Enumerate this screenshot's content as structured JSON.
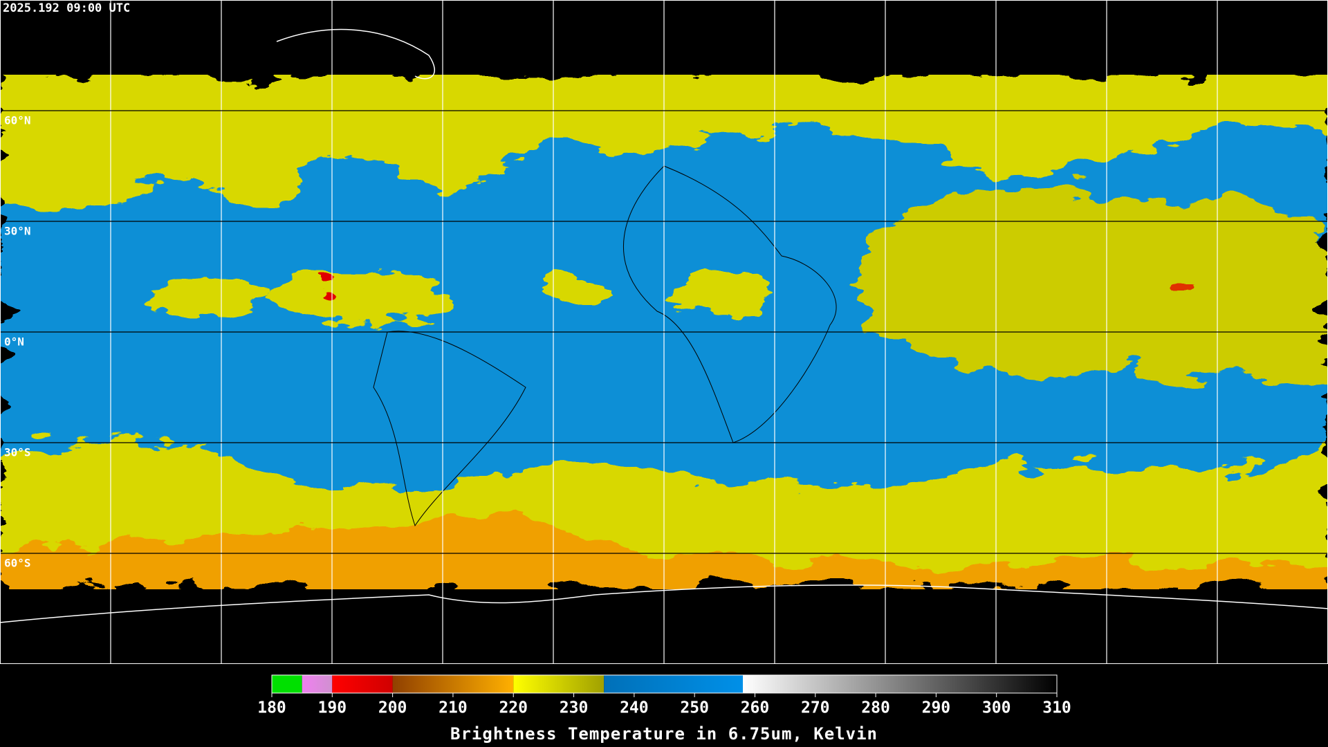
{
  "map": {
    "timestamp": "2025.192 09:00 UTC",
    "lat_lines": [
      {
        "value": 60,
        "label": "60°N"
      },
      {
        "value": 30,
        "label": "30°N"
      },
      {
        "value": 0,
        "label": "0°N"
      },
      {
        "value": -30,
        "label": "30°S"
      },
      {
        "value": -60,
        "label": "60°S"
      }
    ],
    "lon_lines": [
      -150,
      -120,
      -90,
      -60,
      -30,
      0,
      30,
      60,
      90,
      120,
      150
    ],
    "lon_range": [
      -180,
      180
    ],
    "lat_range": [
      -90,
      90
    ]
  },
  "colorbar": {
    "title": "Brightness Temperature in 6.75um, Kelvin",
    "range": [
      180,
      310
    ],
    "ticks": [
      180,
      190,
      200,
      210,
      220,
      230,
      240,
      250,
      260,
      270,
      280,
      290,
      300,
      310
    ],
    "segments": [
      {
        "from": 180,
        "to": 185,
        "colors": [
          "#00e000",
          "#00e000"
        ]
      },
      {
        "from": 185,
        "to": 190,
        "colors": [
          "#f080f0",
          "#d090d0"
        ]
      },
      {
        "from": 190,
        "to": 200,
        "colors": [
          "#ff0000",
          "#d00000"
        ]
      },
      {
        "from": 200,
        "to": 220,
        "colors": [
          "#904000",
          "#ffb000"
        ]
      },
      {
        "from": 220,
        "to": 235,
        "colors": [
          "#ffff00",
          "#a0a000"
        ]
      },
      {
        "from": 235,
        "to": 258,
        "colors": [
          "#0070b8",
          "#0090e8"
        ]
      },
      {
        "from": 258,
        "to": 310,
        "colors": [
          "#ffffff",
          "#000000"
        ]
      }
    ]
  }
}
